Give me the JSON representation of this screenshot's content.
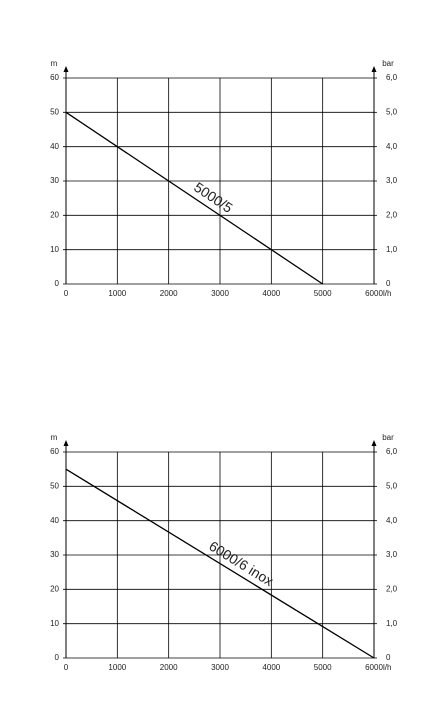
{
  "chart_data": [
    {
      "type": "line",
      "x": [
        0,
        5000
      ],
      "series": [
        {
          "name": "5000/5",
          "color": "#000000",
          "values": [
            50,
            0
          ]
        }
      ],
      "xlim": [
        0,
        6000
      ],
      "xticks": [
        0,
        1000,
        2000,
        3000,
        4000,
        5000,
        6000
      ],
      "ylim": [
        0,
        60
      ],
      "yticks": [
        0,
        10,
        20,
        30,
        40,
        50,
        60
      ],
      "y2lim": [
        0,
        6
      ],
      "y2ticks": [
        0,
        {
          "value": 1,
          "label": "1,0"
        },
        {
          "value": 2,
          "label": "2,0"
        },
        {
          "value": 3,
          "label": "3,0"
        },
        {
          "value": 4,
          "label": "4,0"
        },
        {
          "value": 5,
          "label": "5,0"
        },
        {
          "value": 6,
          "label": "6,0"
        }
      ],
      "x_label": "l/h",
      "y_label": "m",
      "y2_label": "bar",
      "grid": true
    },
    {
      "type": "line",
      "x": [
        0,
        6000
      ],
      "series": [
        {
          "name": "6000/6 inox",
          "color": "#000000",
          "values": [
            55,
            0
          ]
        }
      ],
      "xlim": [
        0,
        6000
      ],
      "xticks": [
        0,
        1000,
        2000,
        3000,
        4000,
        5000,
        6000
      ],
      "ylim": [
        0,
        60
      ],
      "yticks": [
        0,
        10,
        20,
        30,
        40,
        50,
        60
      ],
      "y2lim": [
        0,
        6
      ],
      "y2ticks": [
        0,
        {
          "value": 1,
          "label": "1,0"
        },
        {
          "value": 2,
          "label": "2,0"
        },
        {
          "value": 3,
          "label": "3,0"
        },
        {
          "value": 4,
          "label": "4,0"
        },
        {
          "value": 5,
          "label": "5,0"
        },
        {
          "value": 6,
          "label": "6,0"
        }
      ],
      "x_label": "l/h",
      "y_label": "m",
      "y2_label": "bar",
      "grid": true
    }
  ]
}
